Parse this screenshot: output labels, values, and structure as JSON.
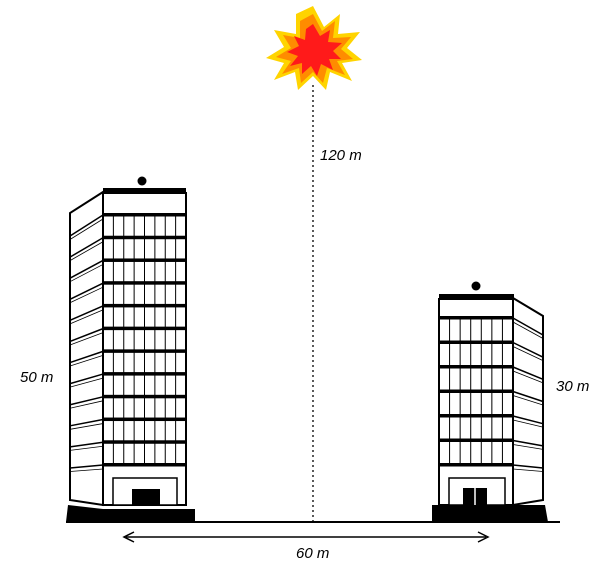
{
  "labels": {
    "explosion_height": "120 m",
    "left_building_height": "50 m",
    "right_building_height": "30 m",
    "distance_between": "60 m"
  },
  "icons": {
    "explosion": "explosion-icon",
    "left_building": "building-icon",
    "right_building": "building-icon"
  },
  "colors": {
    "explosion_outer": "#ffd400",
    "explosion_mid": "#ff8c00",
    "explosion_inner": "#ff1a1a",
    "ink": "#000000"
  }
}
